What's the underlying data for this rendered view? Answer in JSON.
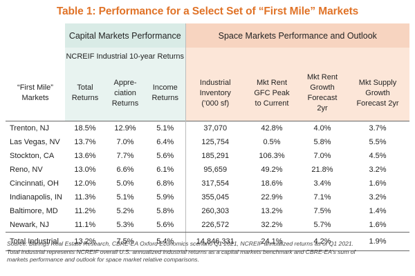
{
  "title": "Table 1: Performance for a Select Set of “First Mile” Markets",
  "groups": {
    "capital": "Capital Markets Performance",
    "space": "Space Markets Performance and Outlook"
  },
  "subheader": "NCREIF Industrial 10-year Returns",
  "columns": {
    "market": [
      "“First Mile”",
      "Markets"
    ],
    "total_returns": [
      "Total",
      "Returns"
    ],
    "appreciation_returns": [
      "Appre-",
      "ciation",
      "Returns"
    ],
    "income_returns": [
      "Income",
      "Returns"
    ],
    "industrial_inventory": [
      "Industrial",
      "Inventory",
      "(’000 sf)"
    ],
    "mkt_rent_gfc": [
      "Mkt Rent",
      "GFC Peak",
      "to Current"
    ],
    "mkt_rent_growth": [
      "Mkt Rent",
      "Growth",
      "Forecast",
      "2yr"
    ],
    "mkt_supply_growth": [
      "Mkt Supply",
      "Growth",
      "Forecast 2yr"
    ]
  },
  "rows": [
    {
      "market": "Trenton, NJ",
      "total": "18.5%",
      "appreciation": "12.9%",
      "income": "5.1%",
      "inventory": "37,070",
      "gfc": "42.8%",
      "rent_growth": "4.0%",
      "supply_growth": "3.7%"
    },
    {
      "market": "Las Vegas, NV",
      "total": "13.7%",
      "appreciation": "7.0%",
      "income": "6.4%",
      "inventory": "125,754",
      "gfc": "0.5%",
      "rent_growth": "5.8%",
      "supply_growth": "5.5%"
    },
    {
      "market": "Stockton, CA",
      "total": "13.6%",
      "appreciation": "7.7%",
      "income": "5.6%",
      "inventory": "185,291",
      "gfc": "106.3%",
      "rent_growth": "7.0%",
      "supply_growth": "4.5%"
    },
    {
      "market": "Reno, NV",
      "total": "13.0%",
      "appreciation": "6.6%",
      "income": "6.1%",
      "inventory": "95,659",
      "gfc": "49.2%",
      "rent_growth": "21.8%",
      "supply_growth": "3.2%"
    },
    {
      "market": "Cincinnati, OH",
      "total": "12.0%",
      "appreciation": "5.0%",
      "income": "6.8%",
      "inventory": "317,554",
      "gfc": "18.6%",
      "rent_growth": "3.4%",
      "supply_growth": "1.6%"
    },
    {
      "market": "Indianapolis, IN",
      "total": "11.3%",
      "appreciation": "5.1%",
      "income": "5.9%",
      "inventory": "355,045",
      "gfc": "22.9%",
      "rent_growth": "7.1%",
      "supply_growth": "3.2%"
    },
    {
      "market": "Baltimore, MD",
      "total": "11.2%",
      "appreciation": "5.2%",
      "income": "5.8%",
      "inventory": "260,303",
      "gfc": "13.2%",
      "rent_growth": "7.5%",
      "supply_growth": "1.4%"
    },
    {
      "market": "Newark, NJ",
      "total": "11.1%",
      "appreciation": "5.3%",
      "income": "5.6%",
      "inventory": "226,572",
      "gfc": "32.2%",
      "rent_growth": "5.7%",
      "supply_growth": "1.6%"
    }
  ],
  "total_row": {
    "market": "Total Industrial",
    "total": "13.2%",
    "appreciation": "7.5%",
    "income": "5.4%",
    "inventory": "14,846,331",
    "gfc": "24.1%",
    "rent_growth": "4.2%",
    "supply_growth": "1.9%"
  },
  "notes": [
    "Source: Barings Real Estate Research, CBRE-EA Oxford Economics scenario Q1 2021, NCREIF annualized returns as of Q1 2021.",
    "Total industrial represents NCREIF overall U.S. annualized industrial returns as a capital markets benchmark and CBRE-EA’s sum of",
    "markets performance and outlook for space market relative comparisons."
  ],
  "colors": {
    "title": "#e07328",
    "capital_bg": "#d9ebe6",
    "space_bg": "#f7d4c0"
  }
}
